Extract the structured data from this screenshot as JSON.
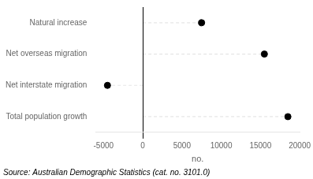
{
  "chart_data": {
    "type": "lollipop",
    "categories": [
      "Natural increase",
      "Net overseas migration",
      "Net interstate migration",
      "Total population growth"
    ],
    "values": [
      7500,
      15500,
      -4500,
      18500
    ],
    "color": "#000000",
    "marker": "circle",
    "line_style": "dashed",
    "xlim": [
      -6000,
      20000
    ],
    "xticks": [
      -5000,
      0,
      5000,
      10000,
      15000,
      20000
    ],
    "xlabel": "no.",
    "annotations": [
      "Source: Australian Demographic Statistics (cat. no. 3101.0)"
    ],
    "grid": false
  }
}
